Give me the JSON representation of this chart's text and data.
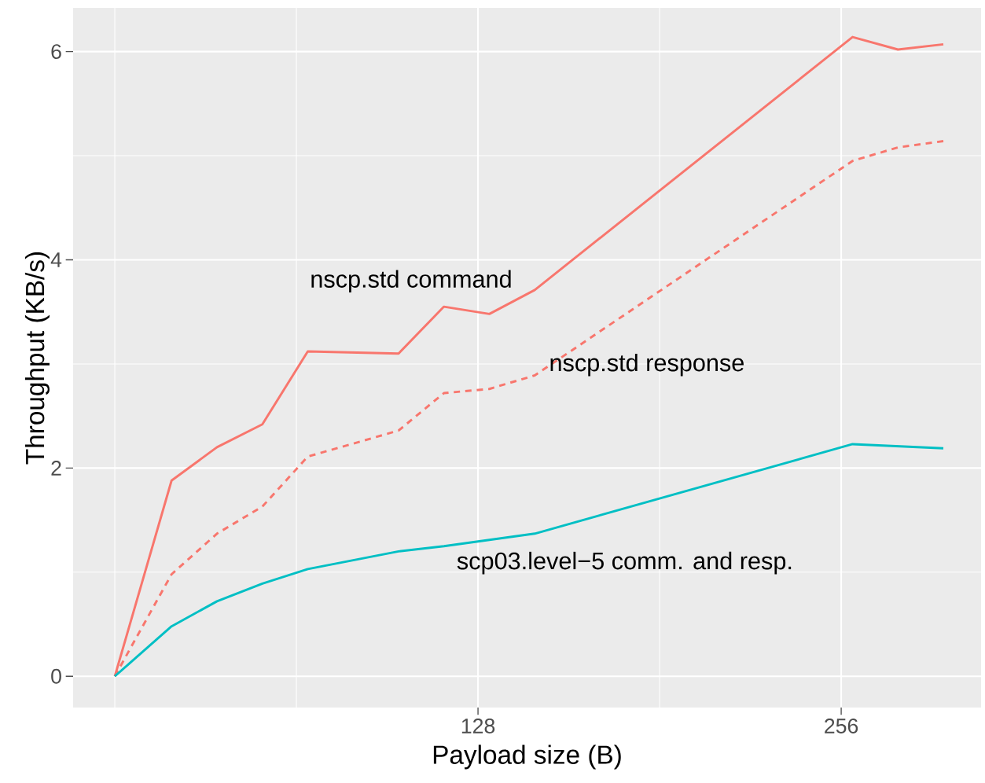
{
  "chart_data": {
    "type": "line",
    "xlabel": "Payload size (B)",
    "ylabel": "Throughput (KB/s)",
    "xlim": [
      -14.7,
      305.3
    ],
    "ylim": [
      -0.3,
      6.42
    ],
    "xticks": [
      {
        "value": 0,
        "label": null
      },
      {
        "value": 64,
        "label": null
      },
      128,
      {
        "value": 192,
        "label": null
      },
      256
    ],
    "yticks": [
      0,
      {
        "value": 1,
        "label": null
      },
      2,
      {
        "value": 3,
        "label": null
      },
      4,
      {
        "value": 5,
        "label": null
      },
      6
    ],
    "grid": true,
    "series": [
      {
        "name": "nscp.std command",
        "color": "#f8766d",
        "line_style": "solid",
        "x": [
          0,
          20,
          36,
          52,
          68,
          100,
          116,
          132,
          148,
          260,
          276,
          292
        ],
        "values": [
          0,
          1.88,
          2.2,
          2.42,
          3.12,
          3.1,
          3.55,
          3.48,
          3.71,
          6.14,
          6.02,
          6.07
        ]
      },
      {
        "name": "nscp.std response",
        "color": "#f8766d",
        "line_style": "dashed",
        "x": [
          0,
          20,
          36,
          52,
          68,
          100,
          116,
          132,
          148,
          260,
          276,
          292
        ],
        "values": [
          0,
          0.98,
          1.37,
          1.63,
          2.11,
          2.36,
          2.72,
          2.76,
          2.89,
          4.95,
          5.08,
          5.14
        ]
      },
      {
        "name": "scp03.level−5 comm. and resp.",
        "color": "#00bfc4",
        "line_style": "solid",
        "x": [
          0,
          5,
          20,
          36,
          52,
          68,
          100,
          116,
          132,
          148,
          260,
          292
        ],
        "values": [
          0,
          0.12,
          0.48,
          0.72,
          0.89,
          1.03,
          1.2,
          1.25,
          1.31,
          1.37,
          2.23,
          2.19
        ]
      }
    ]
  }
}
